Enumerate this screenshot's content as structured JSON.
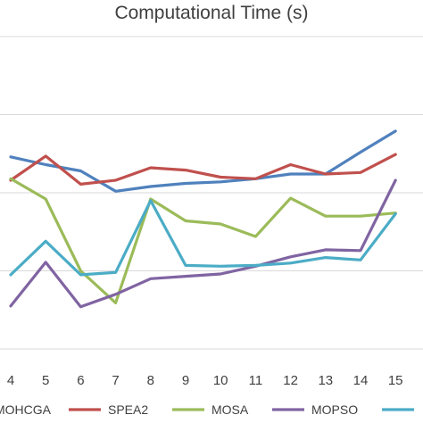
{
  "chart_data": {
    "type": "line",
    "title": "Computational Time (s)",
    "xlabel": "",
    "ylabel": "",
    "grid": true,
    "legend_position": "bottom",
    "x": [
      4,
      5,
      6,
      7,
      8,
      9,
      10,
      11,
      12,
      13,
      14,
      15
    ],
    "x_tick_labels": [
      "4",
      "5",
      "6",
      "7",
      "8",
      "9",
      "10",
      "11",
      "12",
      "13",
      "14",
      "15"
    ],
    "ylim": [
      0,
      5.5
    ],
    "gridlines_y": [
      0,
      1,
      2,
      3,
      4,
      5
    ],
    "series": [
      {
        "name": "MOHCGA",
        "color": "#4f81bd",
        "values": [
          3.46,
          3.36,
          3.28,
          3.02,
          3.08,
          3.12,
          3.14,
          3.18,
          3.24,
          3.24,
          3.52,
          3.79
        ]
      },
      {
        "name": "SPEA2",
        "color": "#c0504d",
        "values": [
          3.16,
          3.47,
          3.11,
          3.16,
          3.32,
          3.29,
          3.2,
          3.18,
          3.36,
          3.24,
          3.26,
          3.49
        ]
      },
      {
        "name": "MOSA",
        "color": "#9bbb59",
        "values": [
          3.18,
          2.92,
          2.0,
          1.59,
          2.92,
          2.64,
          2.6,
          2.44,
          2.93,
          2.7,
          2.7,
          2.74
        ]
      },
      {
        "name": "MOPSO",
        "color": "#8064a2",
        "values": [
          1.55,
          2.11,
          1.54,
          1.7,
          1.9,
          1.93,
          1.96,
          2.06,
          2.18,
          2.27,
          2.26,
          3.16
        ]
      },
      {
        "name": "",
        "color": "#4bacc6",
        "values": [
          1.95,
          2.38,
          1.95,
          1.98,
          2.9,
          2.07,
          2.06,
          2.07,
          2.1,
          2.17,
          2.14,
          2.73
        ]
      }
    ]
  }
}
